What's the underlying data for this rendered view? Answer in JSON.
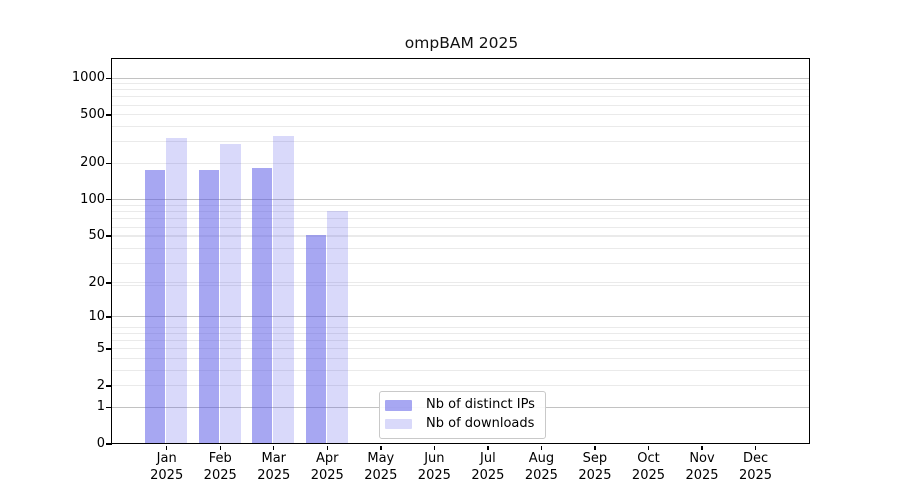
{
  "title": "ompBAM 2025",
  "chart_data": {
    "type": "bar",
    "title": "ompBAM 2025",
    "categories": [
      "Jan",
      "Feb",
      "Mar",
      "Apr",
      "May",
      "Jun",
      "Jul",
      "Aug",
      "Sep",
      "Oct",
      "Nov",
      "Dec"
    ],
    "year_label": "2025",
    "series": [
      {
        "name": "Nb of distinct IPs",
        "color": "#5050E680",
        "values": [
          175,
          174,
          180,
          50,
          0,
          0,
          0,
          0,
          0,
          0,
          0,
          0
        ]
      },
      {
        "name": "Nb of downloads",
        "color": "#5050E638",
        "values": [
          320,
          285,
          330,
          80,
          0,
          0,
          0,
          0,
          0,
          0,
          0,
          0
        ]
      }
    ],
    "y_ticks": [
      0,
      1,
      2,
      5,
      10,
      20,
      50,
      100,
      200,
      500,
      1000
    ],
    "y_scale": "log10(1+x)",
    "ylim": [
      0,
      1400
    ],
    "grid": true,
    "legend_position": "inside bottom-center-left",
    "colors": {
      "major_gridline": "#c2c2c2",
      "minor_gridline": "#eaeaea",
      "axis": "#000000",
      "background": "#ffffff"
    }
  }
}
